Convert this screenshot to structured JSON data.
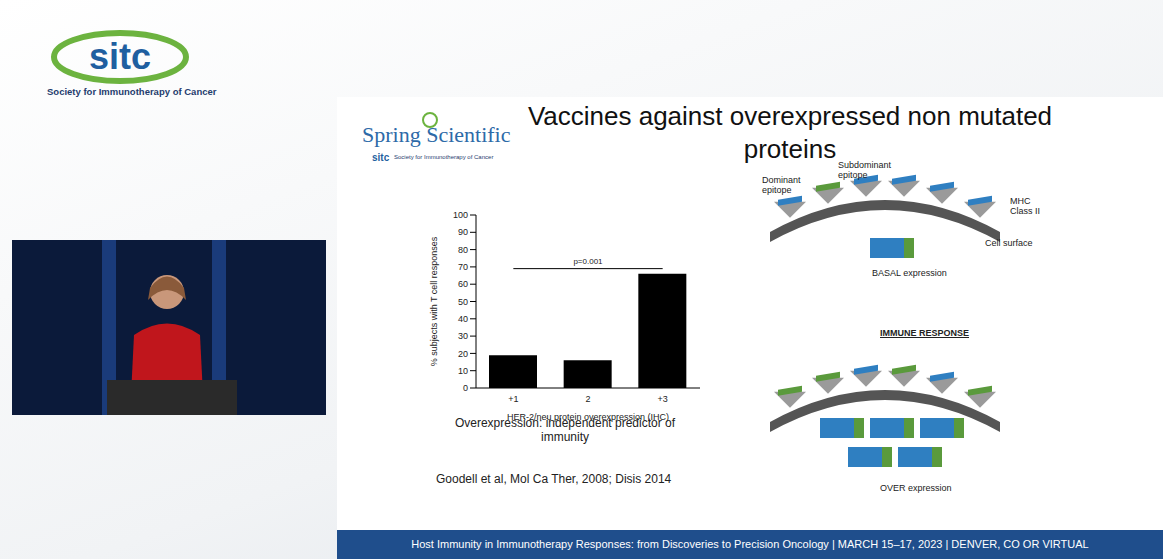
{
  "header": {
    "logo": "sitc",
    "society": "Society for Immunotherapy of Cancer"
  },
  "slide": {
    "title": "Vaccines against overexpressed non mutated proteins",
    "logo": {
      "name": "Spring Scientific",
      "org": "sitc",
      "society": "Society for Immunotherapy of Cancer"
    },
    "caption": "Overexpression: independent predictor of immunity",
    "citation": "Goodell et al, Mol Ca Ther, 2008; Disis 2014",
    "footer": "Host Immunity in Immunotherapy Responses: from Discoveries to Precision Oncology | MARCH 15–17, 2023 | DENVER, CO OR VIRTUAL"
  },
  "diagram": {
    "dominant": "Dominant epitope",
    "subdominant": "Subdominant epitope",
    "mhc": "MHC Class II",
    "surface": "Cell surface",
    "basal": "BASAL expression",
    "heading": "IMMUNE RESPONSE",
    "over": "OVER expression"
  },
  "chart_data": {
    "type": "bar",
    "categories": [
      "+1",
      "2",
      "+3"
    ],
    "values": [
      19,
      16,
      66
    ],
    "color": "#000000",
    "ylim": [
      0,
      100
    ],
    "yticks": [
      0,
      10,
      20,
      30,
      40,
      50,
      60,
      70,
      80,
      90,
      100
    ],
    "x_label": "HER-2/neu protein overexpression (IHC)",
    "y_label": "% subjects with T cell responses",
    "annotations": [
      {
        "text": "p=0.001",
        "y": 69,
        "from": "+1",
        "to": "+3"
      }
    ],
    "grid": false
  }
}
